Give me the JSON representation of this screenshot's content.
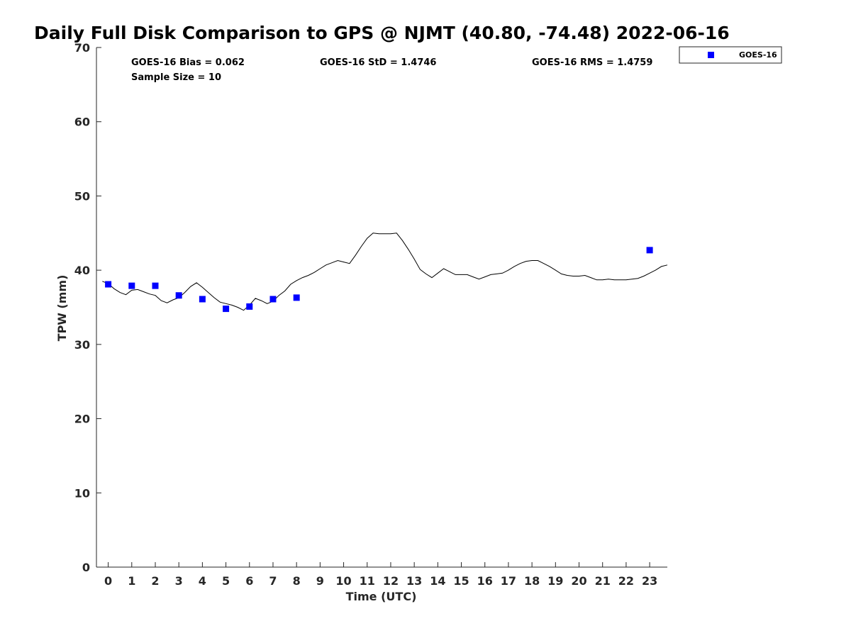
{
  "chart_data": {
    "type": "scatter",
    "title": "Daily Full Disk Comparison to GPS @ NJMT (40.80, -74.48) 2022-06-16",
    "xlabel": "Time (UTC)",
    "ylabel": "TPW (mm)",
    "xlim": [
      -0.5,
      23.75
    ],
    "ylim": [
      0,
      70
    ],
    "x_ticks": [
      0,
      1,
      2,
      3,
      4,
      5,
      6,
      7,
      8,
      9,
      10,
      11,
      12,
      13,
      14,
      15,
      16,
      17,
      18,
      19,
      20,
      21,
      22,
      23
    ],
    "y_ticks": [
      0,
      10,
      20,
      30,
      40,
      50,
      60,
      70
    ],
    "grid": false,
    "legend_position": "top-right",
    "stats": {
      "bias": "GOES-16 Bias = 0.062",
      "std": "GOES-16 StD = 1.4746",
      "rms": "GOES-16 RMS = 1.4759",
      "sample_size": "Sample Size = 10"
    },
    "series": [
      {
        "name": "GOES-16",
        "kind": "scatter",
        "marker": "square",
        "color": "#0000ff",
        "x": [
          0,
          1,
          2,
          3,
          4,
          5,
          6,
          7,
          8,
          23
        ],
        "y": [
          38.1,
          37.9,
          37.9,
          36.6,
          36.1,
          34.8,
          35.1,
          36.1,
          36.3,
          42.7
        ]
      },
      {
        "kind": "line",
        "color": "#000000",
        "x": [
          -0.25,
          0,
          0.25,
          0.5,
          0.75,
          1,
          1.25,
          1.5,
          1.75,
          2,
          2.25,
          2.5,
          2.75,
          3,
          3.25,
          3.5,
          3.75,
          4,
          4.25,
          4.5,
          4.75,
          5,
          5.25,
          5.5,
          5.75,
          6,
          6.25,
          6.5,
          6.75,
          7,
          7.25,
          7.5,
          7.75,
          8,
          8.25,
          8.5,
          8.75,
          9,
          9.25,
          9.5,
          9.75,
          10,
          10.25,
          10.5,
          10.75,
          11,
          11.25,
          11.5,
          11.75,
          12,
          12.25,
          12.5,
          12.75,
          13,
          13.25,
          13.5,
          13.75,
          14,
          14.25,
          14.5,
          14.75,
          15,
          15.25,
          15.5,
          15.75,
          16,
          16.25,
          16.5,
          16.75,
          17,
          17.25,
          17.5,
          17.75,
          18,
          18.25,
          18.5,
          18.75,
          19,
          19.25,
          19.5,
          19.75,
          20,
          20.25,
          20.5,
          20.75,
          21,
          21.25,
          21.5,
          21.75,
          22,
          22.25,
          22.5,
          22.75,
          23,
          23.25,
          23.5,
          23.75
        ],
        "y": [
          38.5,
          38.2,
          37.5,
          37.0,
          36.7,
          37.3,
          37.4,
          37.1,
          36.8,
          36.6,
          35.9,
          35.6,
          36.0,
          36.3,
          37.0,
          37.8,
          38.3,
          37.7,
          37.0,
          36.3,
          35.7,
          35.5,
          35.3,
          35.0,
          34.6,
          35.3,
          36.2,
          35.9,
          35.5,
          35.8,
          36.6,
          37.2,
          38.1,
          38.6,
          39.0,
          39.3,
          39.7,
          40.2,
          40.7,
          41.0,
          41.3,
          41.1,
          40.9,
          42.0,
          43.2,
          44.3,
          45.0,
          44.9,
          44.9,
          44.9,
          45.0,
          44.0,
          42.8,
          41.5,
          40.1,
          39.5,
          39.0,
          39.6,
          40.2,
          39.8,
          39.4,
          39.4,
          39.4,
          39.1,
          38.8,
          39.1,
          39.4,
          39.5,
          39.6,
          40.0,
          40.5,
          40.9,
          41.2,
          41.3,
          41.3,
          40.9,
          40.5,
          40.0,
          39.5,
          39.3,
          39.2,
          39.2,
          39.3,
          39.0,
          38.7,
          38.7,
          38.8,
          38.7,
          38.7,
          38.7,
          38.8,
          38.9,
          39.2,
          39.6,
          40.0,
          40.5,
          40.7
        ]
      }
    ]
  }
}
